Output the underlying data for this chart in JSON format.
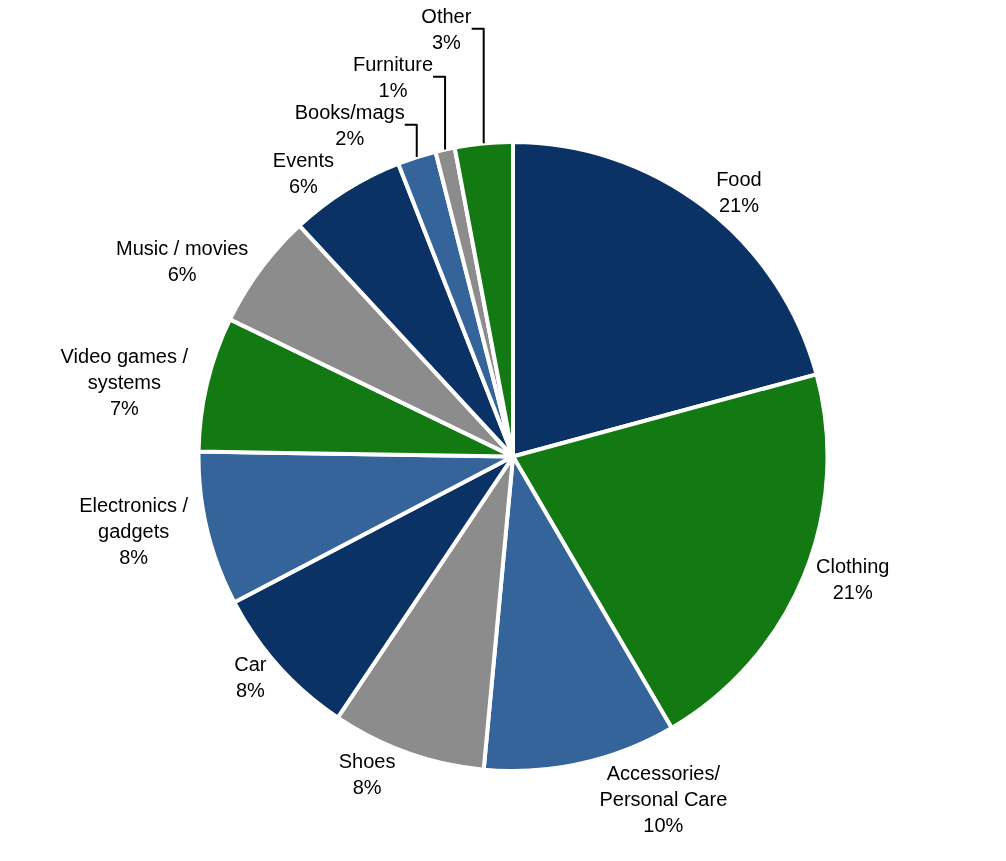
{
  "chart_data": {
    "type": "pie",
    "categories": [
      "Food",
      "Clothing",
      "Accessories/\nPersonal Care",
      "Shoes",
      "Car",
      "Electronics /\ngadgets",
      "Video games /\nsystems",
      "Music / movies",
      "Events",
      "Books/mags",
      "Furniture",
      "Other"
    ],
    "values": [
      21,
      21,
      10,
      8,
      8,
      8,
      7,
      6,
      6,
      2,
      1,
      3
    ],
    "value_labels": [
      "21%",
      "21%",
      "10%",
      "8%",
      "8%",
      "8%",
      "7%",
      "6%",
      "6%",
      "2%",
      "1%",
      "3%"
    ],
    "colors": [
      "#0b3264",
      "#137a13",
      "#34649a",
      "#8c8c8c",
      "#0b3264",
      "#34649a",
      "#137a13",
      "#8c8c8c",
      "#0b3264",
      "#34649a",
      "#8c8c8c",
      "#137a13"
    ],
    "legend": false
  }
}
